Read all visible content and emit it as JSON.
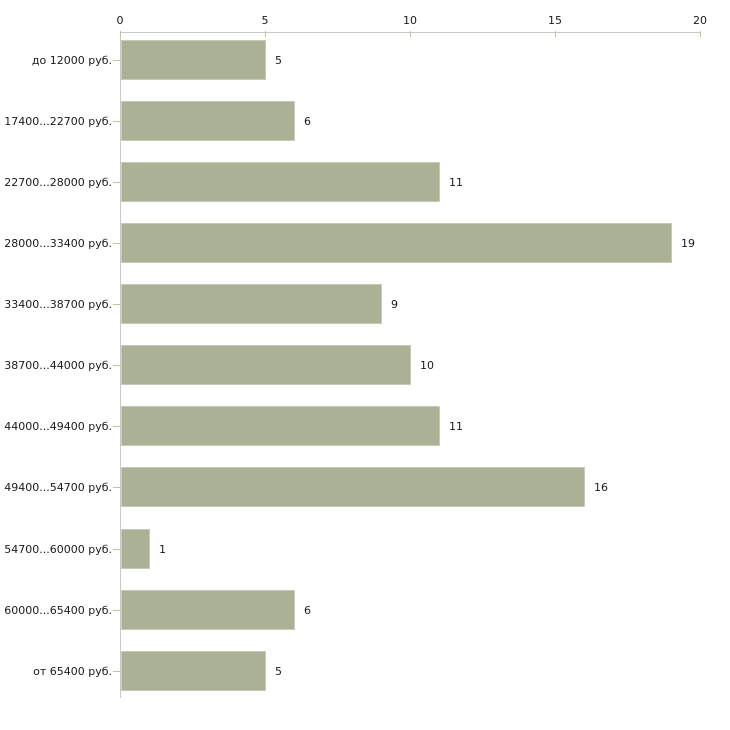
{
  "chart_data": {
    "type": "bar",
    "orientation": "horizontal",
    "title": "",
    "xlabel": "",
    "ylabel": "",
    "axis_position": "top",
    "grid": false,
    "categories": [
      "до 12000 руб.",
      "17400...22700 руб.",
      "22700...28000 руб.",
      "28000...33400 руб.",
      "33400...38700 руб.",
      "38700...44000 руб.",
      "44000...49400 руб.",
      "49400...54700 руб.",
      "54700...60000 руб.",
      "60000...65400 руб.",
      "от 65400 руб."
    ],
    "values": [
      5,
      6,
      11,
      19,
      9,
      10,
      11,
      16,
      1,
      6,
      5
    ],
    "x_ticks": [
      0,
      5,
      10,
      15,
      20
    ],
    "xlim": [
      0,
      20
    ],
    "colors": {
      "bar_fill": "#abb194",
      "bar_border": "#c6cab6",
      "axis_line": "#c9c9c9",
      "tick_mark": "#c2c29c",
      "text": "#1a1a1a",
      "background": "#ffffff"
    }
  }
}
